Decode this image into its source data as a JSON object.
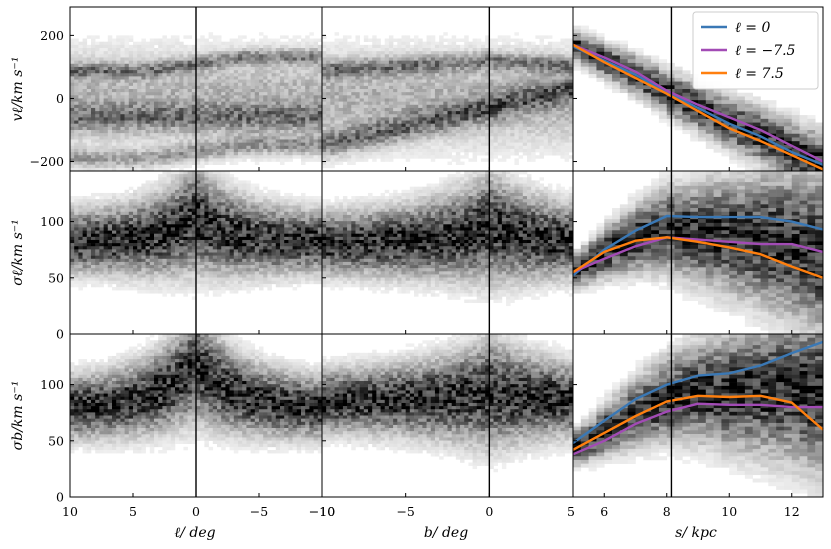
{
  "chart_data": {
    "type": "heatmap",
    "rows": [
      {
        "key": "vl",
        "ylabel": "vℓ/km s⁻¹",
        "ylim": [
          -230,
          290
        ],
        "yticks": [
          -200,
          0,
          200
        ],
        "yticklabels": [
          "−200",
          "0",
          "200"
        ]
      },
      {
        "key": "sl",
        "ylabel": "σℓ/km s⁻¹",
        "ylim": [
          0,
          145
        ],
        "yticks": [
          0,
          50,
          100
        ],
        "yticklabels": [
          "0",
          "50",
          "100"
        ]
      },
      {
        "key": "sb",
        "ylabel": "σb/km s⁻¹",
        "ylim": [
          0,
          145
        ],
        "yticks": [
          0,
          50,
          100
        ],
        "yticklabels": [
          "0",
          "50",
          "100"
        ]
      }
    ],
    "columns": [
      {
        "key": "l",
        "xlabel": "ℓ/ deg",
        "xlim": [
          10,
          -10
        ],
        "xticks": [
          10,
          5,
          0,
          -5,
          -10
        ],
        "xticklabels": [
          "10",
          "5",
          "0",
          "−5",
          "−10"
        ],
        "vline": 0
      },
      {
        "key": "b",
        "xlabel": "b/ deg",
        "xlim": [
          -10,
          5
        ],
        "xticks": [
          -10,
          -5,
          0,
          5
        ],
        "xticklabels": [
          "−10",
          "−5",
          "0",
          "5"
        ],
        "vline": 0
      },
      {
        "key": "s",
        "xlabel": "s/ kpc",
        "xlim": [
          5,
          13
        ],
        "xticks": [
          6,
          8,
          10,
          12
        ],
        "xticklabels": [
          "6",
          "8",
          "10",
          "12"
        ],
        "vline": 8.15
      }
    ],
    "legend": {
      "placement": "top-right",
      "entries": [
        {
          "label": "ℓ = 0",
          "color": "#3a78b5"
        },
        {
          "label": "ℓ = −7.5",
          "color": "#a24bb5"
        },
        {
          "label": "ℓ = 7.5",
          "color": "#ff7f0e"
        }
      ]
    },
    "series": {
      "vl": [
        {
          "name": "ℓ = 0",
          "color": "#3a78b5",
          "x": [
            5,
            6,
            7,
            8,
            9,
            10,
            11,
            12,
            13
          ],
          "y": [
            165,
            120,
            75,
            20,
            -30,
            -80,
            -120,
            -170,
            -210
          ]
        },
        {
          "name": "ℓ = −7.5",
          "color": "#a24bb5",
          "x": [
            5,
            6,
            7,
            8,
            9,
            10,
            11,
            12,
            13
          ],
          "y": [
            170,
            130,
            85,
            25,
            -20,
            -60,
            -100,
            -150,
            -200
          ]
        },
        {
          "name": "ℓ = 7.5",
          "color": "#ff7f0e",
          "x": [
            5,
            6,
            7,
            8,
            9,
            10,
            11,
            12,
            13
          ],
          "y": [
            170,
            115,
            65,
            15,
            -40,
            -95,
            -135,
            -180,
            -225
          ]
        }
      ],
      "sl": [
        {
          "name": "ℓ = 0",
          "color": "#3a78b5",
          "x": [
            5,
            6,
            7,
            8,
            9,
            10,
            11,
            12,
            13
          ],
          "y": [
            52,
            75,
            92,
            105,
            104,
            104,
            104,
            100,
            93
          ]
        },
        {
          "name": "ℓ = −7.5",
          "color": "#a24bb5",
          "x": [
            5,
            6,
            7,
            8,
            9,
            10,
            11,
            12,
            13
          ],
          "y": [
            55,
            67,
            78,
            86,
            84,
            82,
            80,
            80,
            73
          ]
        },
        {
          "name": "ℓ = 7.5",
          "color": "#ff7f0e",
          "x": [
            5,
            6,
            7,
            8,
            9,
            10,
            11,
            12,
            13
          ],
          "y": [
            55,
            73,
            83,
            86,
            82,
            77,
            71,
            60,
            50
          ]
        }
      ],
      "sb": [
        {
          "name": "ℓ = 0",
          "color": "#3a78b5",
          "x": [
            5,
            6,
            7,
            8,
            9,
            10,
            11,
            12,
            13
          ],
          "y": [
            48,
            68,
            87,
            100,
            108,
            110,
            117,
            128,
            138
          ]
        },
        {
          "name": "ℓ = −7.5",
          "color": "#a24bb5",
          "x": [
            5,
            6,
            7,
            8,
            9,
            10,
            11,
            12,
            13
          ],
          "y": [
            38,
            50,
            65,
            76,
            83,
            82,
            82,
            80,
            80
          ]
        },
        {
          "name": "ℓ = 7.5",
          "color": "#ff7f0e",
          "x": [
            5,
            6,
            7,
            8,
            9,
            10,
            11,
            12,
            13
          ],
          "y": [
            42,
            57,
            72,
            85,
            90,
            89,
            90,
            84,
            60
          ]
        }
      ]
    }
  }
}
